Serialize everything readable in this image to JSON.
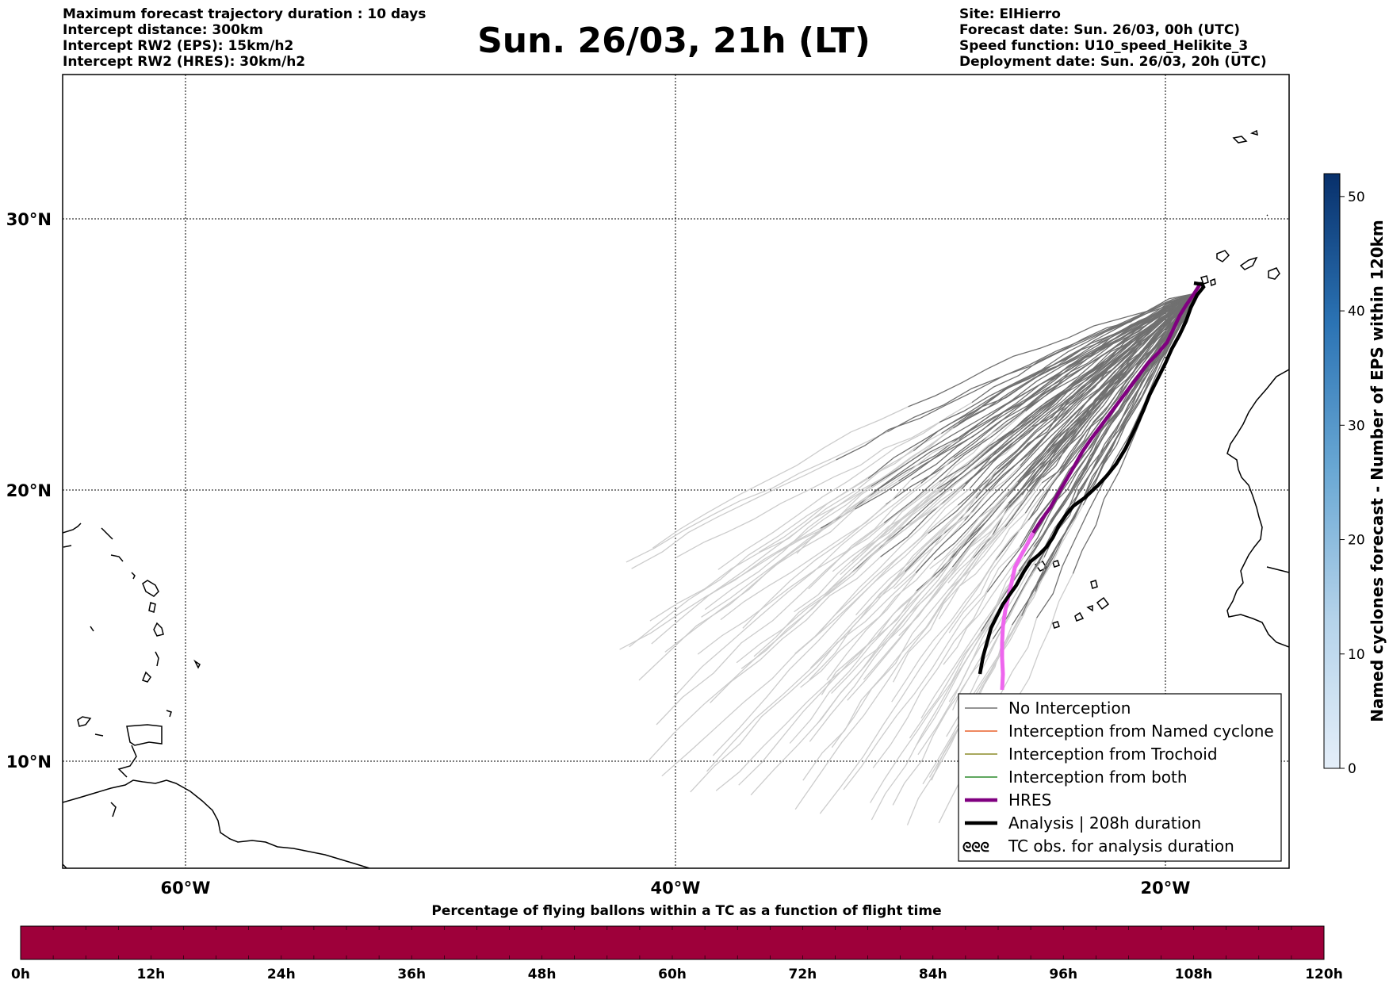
{
  "header_left": [
    "Maximum forecast trajectory duration : 10 days",
    "Intercept distance: 300km",
    "Intercept RW2 (EPS):  15km/h2",
    "Intercept RW2 (HRES): 30km/h2"
  ],
  "header_right": [
    "Site: ElHierro",
    "Forecast date: Sun. 26/03, 00h (UTC)",
    "Speed function: U10_speed_Helikite_3",
    "Deployment date: Sun. 26/03, 20h (UTC)"
  ],
  "title": "Sun. 26/03, 21h (LT)",
  "map": {
    "lon_range": [
      -65,
      15
    ],
    "lat_range": [
      5,
      35
    ],
    "lon_ticks": [
      {
        "value": -60,
        "label": "60°W"
      },
      {
        "value": -40,
        "label": "40°W"
      },
      {
        "value": -20,
        "label": "20°W"
      }
    ],
    "lat_ticks": [
      {
        "value": 30,
        "label": "30°N"
      },
      {
        "value": 20,
        "label": "20°N"
      },
      {
        "value": 10,
        "label": "10°N"
      }
    ],
    "gridlines": true
  },
  "legend": [
    {
      "label": "No Interception",
      "color": "#707070"
    },
    {
      "label": "Interception from Named cyclone",
      "color": "#e8602c"
    },
    {
      "label": "Interception from Trochoid",
      "color": "#8c8c28"
    },
    {
      "label": "Interception from both",
      "color": "#2a8a2a"
    },
    {
      "label": "HRES",
      "color": "#800080"
    },
    {
      "label": "Analysis | 208h duration",
      "color": "#000000"
    },
    {
      "label": "TC obs. for analysis duration",
      "color": "#000000",
      "icon": "ᘓᘓᘓ"
    }
  ],
  "colorbar": {
    "label": "Named cyclones forecast - Number of EPS within 120km",
    "min": 0,
    "max": 52,
    "ticks": [
      "0",
      "10",
      "20",
      "30",
      "40",
      "50"
    ],
    "color_low": "#e4eef9",
    "color_high": "#08306b"
  },
  "flight_time_bar": {
    "title": "Percentage of flying ballons within a TC as a function of flight time",
    "ticks": [
      "0h",
      "12h",
      "24h",
      "36h",
      "48h",
      "60h",
      "72h",
      "84h",
      "96h",
      "108h",
      "120h"
    ],
    "color": "#9e003a"
  }
}
